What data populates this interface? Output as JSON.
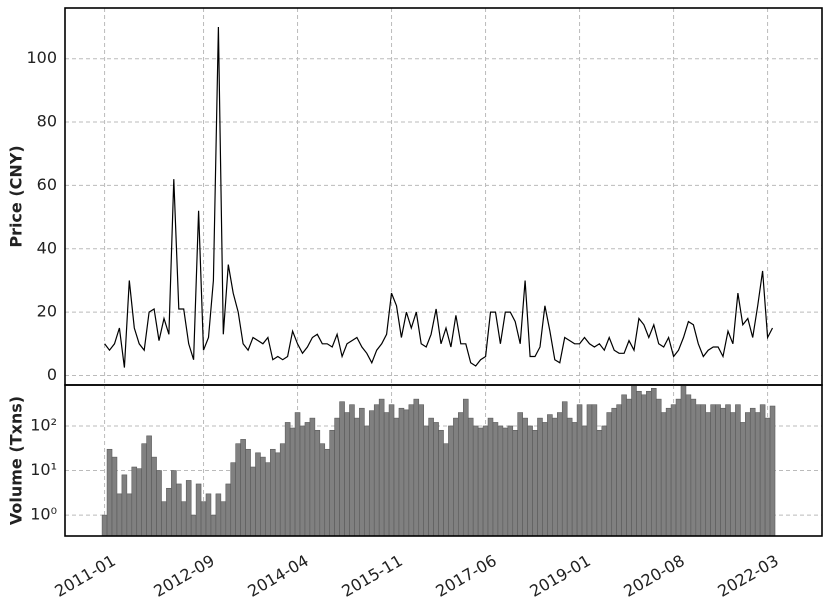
{
  "chart_data": [
    {
      "type": "line",
      "ylabel": "Price (CNY)",
      "x": [
        "2011-01",
        "2011-02",
        "2011-03",
        "2011-04",
        "2011-05",
        "2011-06",
        "2011-07",
        "2011-08",
        "2011-09",
        "2011-10",
        "2011-11",
        "2011-12",
        "2012-01",
        "2012-02",
        "2012-03",
        "2012-04",
        "2012-05",
        "2012-06",
        "2012-07",
        "2012-08",
        "2012-09",
        "2012-10",
        "2012-11",
        "2012-12",
        "2013-01",
        "2013-02",
        "2013-03",
        "2013-04",
        "2013-05",
        "2013-06",
        "2013-07",
        "2013-08",
        "2013-09",
        "2013-10",
        "2013-11",
        "2013-12",
        "2014-01",
        "2014-02",
        "2014-03",
        "2014-04",
        "2014-05",
        "2014-06",
        "2014-07",
        "2014-08",
        "2014-09",
        "2014-10",
        "2014-11",
        "2014-12",
        "2015-01",
        "2015-02",
        "2015-03",
        "2015-04",
        "2015-05",
        "2015-06",
        "2015-07",
        "2015-08",
        "2015-09",
        "2015-10",
        "2015-11",
        "2015-12",
        "2016-01",
        "2016-02",
        "2016-03",
        "2016-04",
        "2016-05",
        "2016-06",
        "2016-07",
        "2016-08",
        "2016-09",
        "2016-10",
        "2016-11",
        "2016-12",
        "2017-01",
        "2017-02",
        "2017-03",
        "2017-04",
        "2017-05",
        "2017-06",
        "2017-07",
        "2017-08",
        "2017-09",
        "2017-10",
        "2017-11",
        "2017-12",
        "2018-01",
        "2018-02",
        "2018-03",
        "2018-04",
        "2018-05",
        "2018-06",
        "2018-07",
        "2018-08",
        "2018-09",
        "2018-10",
        "2018-11",
        "2018-12",
        "2019-01",
        "2019-02",
        "2019-03",
        "2019-04",
        "2019-05",
        "2019-06",
        "2019-07",
        "2019-08",
        "2019-09",
        "2019-10",
        "2019-11",
        "2019-12",
        "2020-01",
        "2020-02",
        "2020-03",
        "2020-04",
        "2020-05",
        "2020-06",
        "2020-07",
        "2020-08",
        "2020-09",
        "2020-10",
        "2020-11",
        "2020-12",
        "2021-01",
        "2021-02",
        "2021-03",
        "2021-04",
        "2021-05",
        "2021-06",
        "2021-07",
        "2021-08",
        "2021-09",
        "2021-10",
        "2021-11",
        "2021-12",
        "2022-01",
        "2022-02",
        "2022-03",
        "2022-04"
      ],
      "series": [
        {
          "color": "#000000",
          "values": [
            10,
            8,
            10,
            15,
            2.5,
            30,
            15,
            10,
            8,
            20,
            21,
            11,
            18,
            13,
            62,
            21,
            21,
            10,
            5,
            52,
            8,
            12,
            30,
            110,
            13,
            35,
            26,
            20,
            10,
            8,
            12,
            11,
            10,
            12,
            5,
            6,
            5,
            6,
            14,
            10,
            7,
            9,
            12,
            13,
            10,
            10,
            9,
            13,
            6,
            10,
            11,
            12,
            9,
            7,
            4,
            8,
            10,
            13,
            26,
            22,
            12,
            20,
            15,
            20,
            10,
            9,
            13,
            21,
            10,
            15,
            9,
            19,
            10,
            10,
            4,
            3,
            5,
            6,
            20,
            20,
            10,
            20,
            20,
            17,
            10,
            30,
            6,
            6,
            9,
            22,
            14,
            5,
            4,
            12,
            11,
            10,
            10,
            12,
            10,
            9,
            10,
            8,
            12,
            8,
            7,
            7,
            11,
            8,
            18,
            16,
            12,
            16,
            10,
            9,
            12,
            6,
            8,
            12,
            17,
            16,
            10,
            6,
            8,
            9,
            9,
            6,
            14,
            10,
            26,
            16,
            18,
            12,
            22,
            33,
            12,
            15
          ]
        }
      ],
      "xlim": [
        "2010-05",
        "2023-02"
      ],
      "xticks": [
        "2011-01",
        "2012-09",
        "2014-04",
        "2015-11",
        "2017-06",
        "2019-01",
        "2020-08",
        "2022-03"
      ],
      "ylim": [
        -3,
        116
      ],
      "yticks": [
        0,
        20,
        40,
        60,
        80,
        100
      ],
      "grid": true
    },
    {
      "type": "bar",
      "ylabel": "Volume (Txns)",
      "color": "#808080",
      "log_y": true,
      "x": [
        "2011-01",
        "2011-02",
        "2011-03",
        "2011-04",
        "2011-05",
        "2011-06",
        "2011-07",
        "2011-08",
        "2011-09",
        "2011-10",
        "2011-11",
        "2011-12",
        "2012-01",
        "2012-02",
        "2012-03",
        "2012-04",
        "2012-05",
        "2012-06",
        "2012-07",
        "2012-08",
        "2012-09",
        "2012-10",
        "2012-11",
        "2012-12",
        "2013-01",
        "2013-02",
        "2013-03",
        "2013-04",
        "2013-05",
        "2013-06",
        "2013-07",
        "2013-08",
        "2013-09",
        "2013-10",
        "2013-11",
        "2013-12",
        "2014-01",
        "2014-02",
        "2014-03",
        "2014-04",
        "2014-05",
        "2014-06",
        "2014-07",
        "2014-08",
        "2014-09",
        "2014-10",
        "2014-11",
        "2014-12",
        "2015-01",
        "2015-02",
        "2015-03",
        "2015-04",
        "2015-05",
        "2015-06",
        "2015-07",
        "2015-08",
        "2015-09",
        "2015-10",
        "2015-11",
        "2015-12",
        "2016-01",
        "2016-02",
        "2016-03",
        "2016-04",
        "2016-05",
        "2016-06",
        "2016-07",
        "2016-08",
        "2016-09",
        "2016-10",
        "2016-11",
        "2016-12",
        "2017-01",
        "2017-02",
        "2017-03",
        "2017-04",
        "2017-05",
        "2017-06",
        "2017-07",
        "2017-08",
        "2017-09",
        "2017-10",
        "2017-11",
        "2017-12",
        "2018-01",
        "2018-02",
        "2018-03",
        "2018-04",
        "2018-05",
        "2018-06",
        "2018-07",
        "2018-08",
        "2018-09",
        "2018-10",
        "2018-11",
        "2018-12",
        "2019-01",
        "2019-02",
        "2019-03",
        "2019-04",
        "2019-05",
        "2019-06",
        "2019-07",
        "2019-08",
        "2019-09",
        "2019-10",
        "2019-11",
        "2019-12",
        "2020-01",
        "2020-02",
        "2020-03",
        "2020-04",
        "2020-05",
        "2020-06",
        "2020-07",
        "2020-08",
        "2020-09",
        "2020-10",
        "2020-11",
        "2020-12",
        "2021-01",
        "2021-02",
        "2021-03",
        "2021-04",
        "2021-05",
        "2021-06",
        "2021-07",
        "2021-08",
        "2021-09",
        "2021-10",
        "2021-11",
        "2021-12",
        "2022-01",
        "2022-02",
        "2022-03",
        "2022-04"
      ],
      "values": [
        1,
        30,
        20,
        3,
        8,
        3,
        12,
        11,
        40,
        60,
        20,
        10,
        2,
        4,
        10,
        5,
        2,
        6,
        1,
        5,
        2,
        3,
        1,
        3,
        2,
        5,
        15,
        40,
        50,
        30,
        12,
        25,
        20,
        15,
        30,
        25,
        40,
        120,
        90,
        200,
        100,
        120,
        150,
        80,
        40,
        30,
        80,
        150,
        350,
        200,
        300,
        150,
        250,
        100,
        220,
        300,
        400,
        200,
        300,
        150,
        250,
        230,
        300,
        400,
        300,
        100,
        150,
        120,
        80,
        40,
        100,
        150,
        200,
        400,
        150,
        100,
        90,
        100,
        150,
        120,
        100,
        90,
        100,
        80,
        200,
        150,
        100,
        80,
        150,
        120,
        180,
        150,
        200,
        350,
        150,
        120,
        300,
        100,
        300,
        300,
        80,
        100,
        200,
        250,
        300,
        500,
        400,
        800,
        600,
        500,
        600,
        700,
        400,
        200,
        250,
        300,
        400,
        800,
        500,
        400,
        300,
        300,
        200,
        300,
        300,
        250,
        300,
        200,
        300,
        120,
        200,
        250,
        200,
        300,
        150,
        280
      ],
      "xlim": [
        "2010-05",
        "2023-02"
      ],
      "xticks": [
        "2011-01",
        "2012-09",
        "2014-04",
        "2015-11",
        "2017-06",
        "2019-01",
        "2020-08",
        "2022-03"
      ],
      "ylim": [
        0.34,
        830
      ],
      "yticks": [
        {
          "value": 1,
          "label": "10⁰"
        },
        {
          "value": 10,
          "label": "10¹"
        },
        {
          "value": 100,
          "label": "10²"
        }
      ],
      "grid": true
    }
  ]
}
